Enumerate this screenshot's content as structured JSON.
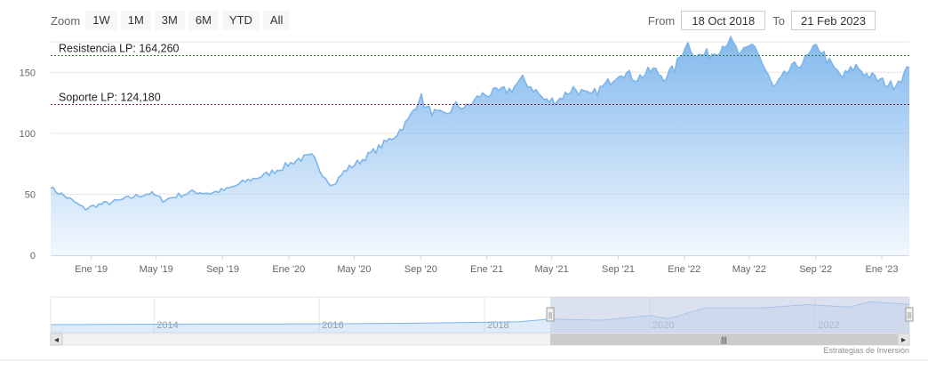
{
  "zoom": {
    "label": "Zoom",
    "buttons": [
      {
        "label": "1W"
      },
      {
        "label": "1M"
      },
      {
        "label": "3M"
      },
      {
        "label": "6M"
      },
      {
        "label": "YTD"
      },
      {
        "label": "All"
      }
    ]
  },
  "range": {
    "from_label": "From",
    "from_value": "18 Oct 2018",
    "to_label": "To",
    "to_value": "21 Feb 2023"
  },
  "credits": "Estrategias de Inversión",
  "colors": {
    "series_line": "#7cb5ec",
    "resistance_line": "#2e7d32",
    "support_line": "#8b1a2b",
    "navigator_mask": "#c5cde6"
  },
  "chart_data": {
    "type": "area",
    "x_tick_labels": [
      "Ene '19",
      "May '19",
      "Sep '19",
      "Ene '20",
      "May '20",
      "Sep '20",
      "Ene '21",
      "May '21",
      "Sep '21",
      "Ene '22",
      "May '22",
      "Sep '22",
      "Ene '23"
    ],
    "x_range": [
      "2018-10-18",
      "2023-02-21"
    ],
    "y_tick_labels": [
      "0",
      "50",
      "100",
      "150"
    ],
    "ylim": [
      0,
      175
    ],
    "grid": true,
    "series": [
      {
        "x": [
          "2018-10-18",
          "2018-11-15",
          "2018-12-20",
          "2019-01-10",
          "2019-02-15",
          "2019-03-20",
          "2019-04-20",
          "2019-05-15",
          "2019-06-10",
          "2019-07-10",
          "2019-08-10",
          "2019-09-10",
          "2019-10-15",
          "2019-11-20",
          "2019-12-20",
          "2020-01-20",
          "2020-02-15",
          "2020-02-25",
          "2020-03-15",
          "2020-03-23",
          "2020-04-15",
          "2020-05-15",
          "2020-06-15",
          "2020-07-15",
          "2020-08-10",
          "2020-08-31",
          "2020-09-10",
          "2020-09-25",
          "2020-10-15",
          "2020-11-05",
          "2020-11-25",
          "2020-12-20",
          "2021-01-25",
          "2021-02-15",
          "2021-03-08",
          "2021-03-30",
          "2021-04-20",
          "2021-05-15",
          "2021-06-10",
          "2021-07-10",
          "2021-08-10",
          "2021-09-05",
          "2021-10-05",
          "2021-11-05",
          "2021-11-25",
          "2021-12-15",
          "2022-01-05",
          "2022-01-25",
          "2022-02-25",
          "2022-03-25",
          "2022-04-15",
          "2022-05-10",
          "2022-05-30",
          "2022-06-16",
          "2022-07-10",
          "2022-08-15",
          "2022-09-05",
          "2022-09-30",
          "2022-10-20",
          "2022-11-15",
          "2022-12-05",
          "2022-12-28",
          "2023-01-20",
          "2023-02-10",
          "2023-02-21"
        ],
        "y": [
          55,
          48,
          38,
          41,
          44,
          48,
          51,
          45,
          49,
          52,
          51,
          54,
          61,
          66,
          72,
          79,
          81,
          71,
          61,
          57,
          70,
          78,
          88,
          98,
          111,
          131,
          121,
          117,
          114,
          123,
          121,
          131,
          134,
          136,
          144,
          136,
          126,
          128,
          137,
          130,
          140,
          151,
          145,
          152,
          146,
          153,
          175,
          163,
          166,
          177,
          163,
          174,
          152,
          136,
          150,
          161,
          172,
          155,
          146,
          155,
          148,
          143,
          139,
          147,
          154
        ]
      }
    ],
    "annotations": [
      {
        "type": "horizontal-line",
        "value": 164.26,
        "label": "Resistencia LP: 164,260"
      },
      {
        "type": "horizontal-line",
        "value": 124.18,
        "label": "Soporte LP: 124,180"
      }
    ]
  },
  "navigator": {
    "year_labels": [
      "2014",
      "2016",
      "2018",
      "2020",
      "2022"
    ],
    "selected_range": [
      "2018-10-18",
      "2023-02-21"
    ],
    "history": {
      "x": [
        "2012-10-01",
        "2013-06-01",
        "2014-01-01",
        "2014-09-01",
        "2015-06-01",
        "2016-03-01",
        "2017-01-01",
        "2017-09-01",
        "2018-06-01",
        "2018-10-18",
        "2019-06-01",
        "2020-01-01",
        "2020-03-23",
        "2020-09-01",
        "2021-05-01",
        "2021-12-01",
        "2022-06-01",
        "2022-09-01",
        "2023-02-21"
      ],
      "y": [
        18,
        20,
        21,
        22,
        23,
        24,
        27,
        31,
        38,
        55,
        48,
        79,
        57,
        131,
        130,
        153,
        136,
        172,
        154
      ]
    },
    "scroll_left_label": "◂",
    "scroll_right_label": "▸",
    "scroll_grip_label": "|||",
    "handle_grip_label": "||"
  }
}
